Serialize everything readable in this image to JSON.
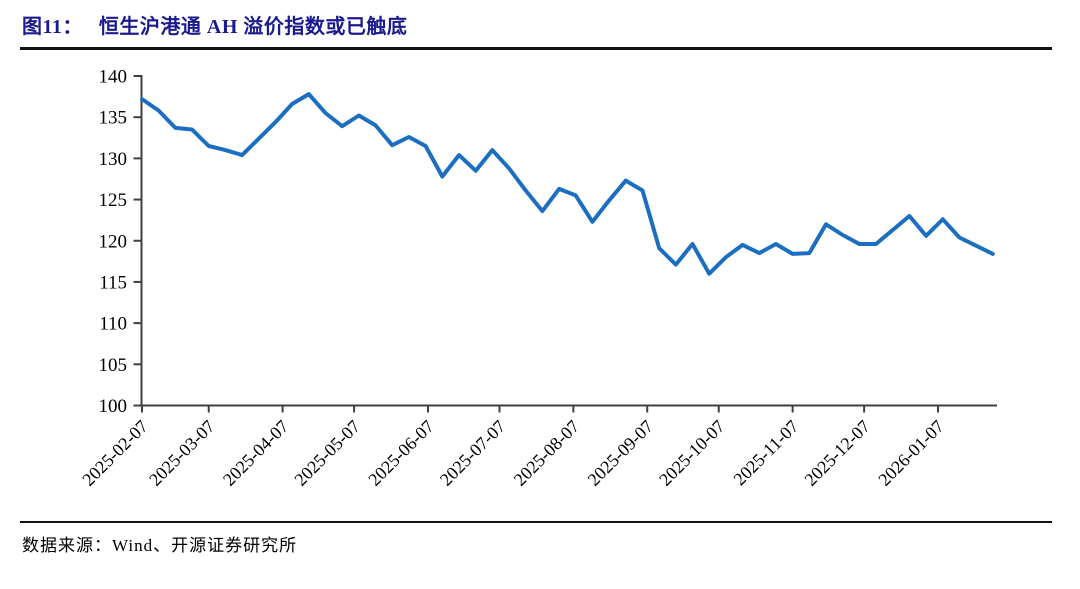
{
  "figure": {
    "label": "图11：",
    "title": "恒生沪港通 AH 溢价指数或已触底"
  },
  "source": {
    "text": "数据来源：Wind、开源证券研究所"
  },
  "colors": {
    "title": "#1b1b8f",
    "line": "#1c6fc0",
    "axis": "#3f3f3f",
    "text": "#000000"
  },
  "chart_data": {
    "type": "line",
    "title": "恒生沪港通 AH 溢价指数或已触底",
    "legend": "none",
    "grid": false,
    "ylim": [
      100,
      140
    ],
    "y_ticks": [
      140,
      135,
      130,
      125,
      120,
      115,
      110,
      105,
      100
    ],
    "x_tick_labels": [
      "2025-02-07",
      "2025-03-07",
      "2025-04-07",
      "2025-05-07",
      "2025-06-07",
      "2025-07-07",
      "2025-08-07",
      "2025-09-07",
      "2025-10-07",
      "2025-11-07",
      "2025-12-07",
      "2026-01-07"
    ],
    "x": [
      "2025-02-07",
      "2025-02-14",
      "2025-02-21",
      "2025-02-28",
      "2025-03-07",
      "2025-03-14",
      "2025-03-21",
      "2025-03-28",
      "2025-04-04",
      "2025-04-11",
      "2025-04-18",
      "2025-04-25",
      "2025-05-02",
      "2025-05-09",
      "2025-05-16",
      "2025-05-23",
      "2025-05-30",
      "2025-06-06",
      "2025-06-13",
      "2025-06-20",
      "2025-06-27",
      "2025-07-04",
      "2025-07-11",
      "2025-07-18",
      "2025-07-25",
      "2025-08-01",
      "2025-08-08",
      "2025-08-15",
      "2025-08-22",
      "2025-08-29",
      "2025-09-05",
      "2025-09-12",
      "2025-09-19",
      "2025-09-26",
      "2025-10-03",
      "2025-10-10",
      "2025-10-17",
      "2025-10-24",
      "2025-10-31",
      "2025-11-07",
      "2025-11-14",
      "2025-11-21",
      "2025-11-28",
      "2025-12-05",
      "2025-12-12",
      "2025-12-19",
      "2025-12-26",
      "2026-01-02",
      "2026-01-09",
      "2026-01-16",
      "2026-01-23",
      "2026-01-30"
    ],
    "values": [
      137.2,
      135.8,
      133.7,
      133.5,
      131.5,
      131.0,
      130.4,
      132.4,
      134.4,
      136.6,
      137.8,
      135.5,
      133.9,
      135.2,
      134.0,
      131.6,
      132.6,
      131.5,
      127.8,
      130.4,
      128.5,
      131.0,
      128.8,
      126.1,
      123.6,
      126.3,
      125.5,
      122.3,
      124.9,
      127.3,
      126.1,
      119.1,
      117.1,
      119.6,
      116.0,
      118.0,
      119.5,
      118.5,
      119.6,
      118.4,
      118.5,
      122.0,
      120.7,
      119.6,
      119.6,
      121.3,
      123.0,
      120.6,
      122.6,
      120.4,
      119.4,
      118.4
    ]
  }
}
